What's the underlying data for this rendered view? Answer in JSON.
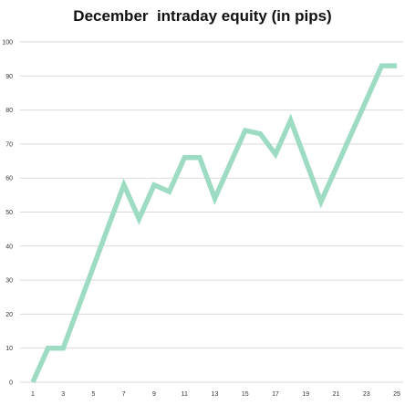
{
  "chart_data": {
    "type": "line",
    "title": "December  intraday equity (in pips)",
    "xlabel": "",
    "ylabel": "",
    "x": [
      1,
      2,
      3,
      4,
      5,
      6,
      7,
      8,
      9,
      10,
      11,
      12,
      13,
      14,
      15,
      16,
      17,
      18,
      19,
      20,
      21,
      22,
      23,
      24,
      25
    ],
    "x_tick_labels": [
      "1",
      "3",
      "5",
      "7",
      "9",
      "11",
      "13",
      "15",
      "17",
      "19",
      "21",
      "23",
      "25"
    ],
    "y_tick_labels": [
      "0",
      "10",
      "20",
      "30",
      "40",
      "50",
      "60",
      "70",
      "80",
      "90",
      "100"
    ],
    "ylim": [
      0,
      100
    ],
    "grid": true,
    "legend": "none",
    "series": [
      {
        "values": [
          0,
          10,
          10,
          22,
          34,
          46,
          58,
          48,
          58,
          56,
          66,
          66,
          54,
          64,
          74,
          73,
          67,
          77,
          65,
          53,
          63,
          73,
          83,
          93,
          93
        ],
        "color": "#9ddcc3"
      }
    ],
    "gridline_color": "#d9d9d9"
  }
}
